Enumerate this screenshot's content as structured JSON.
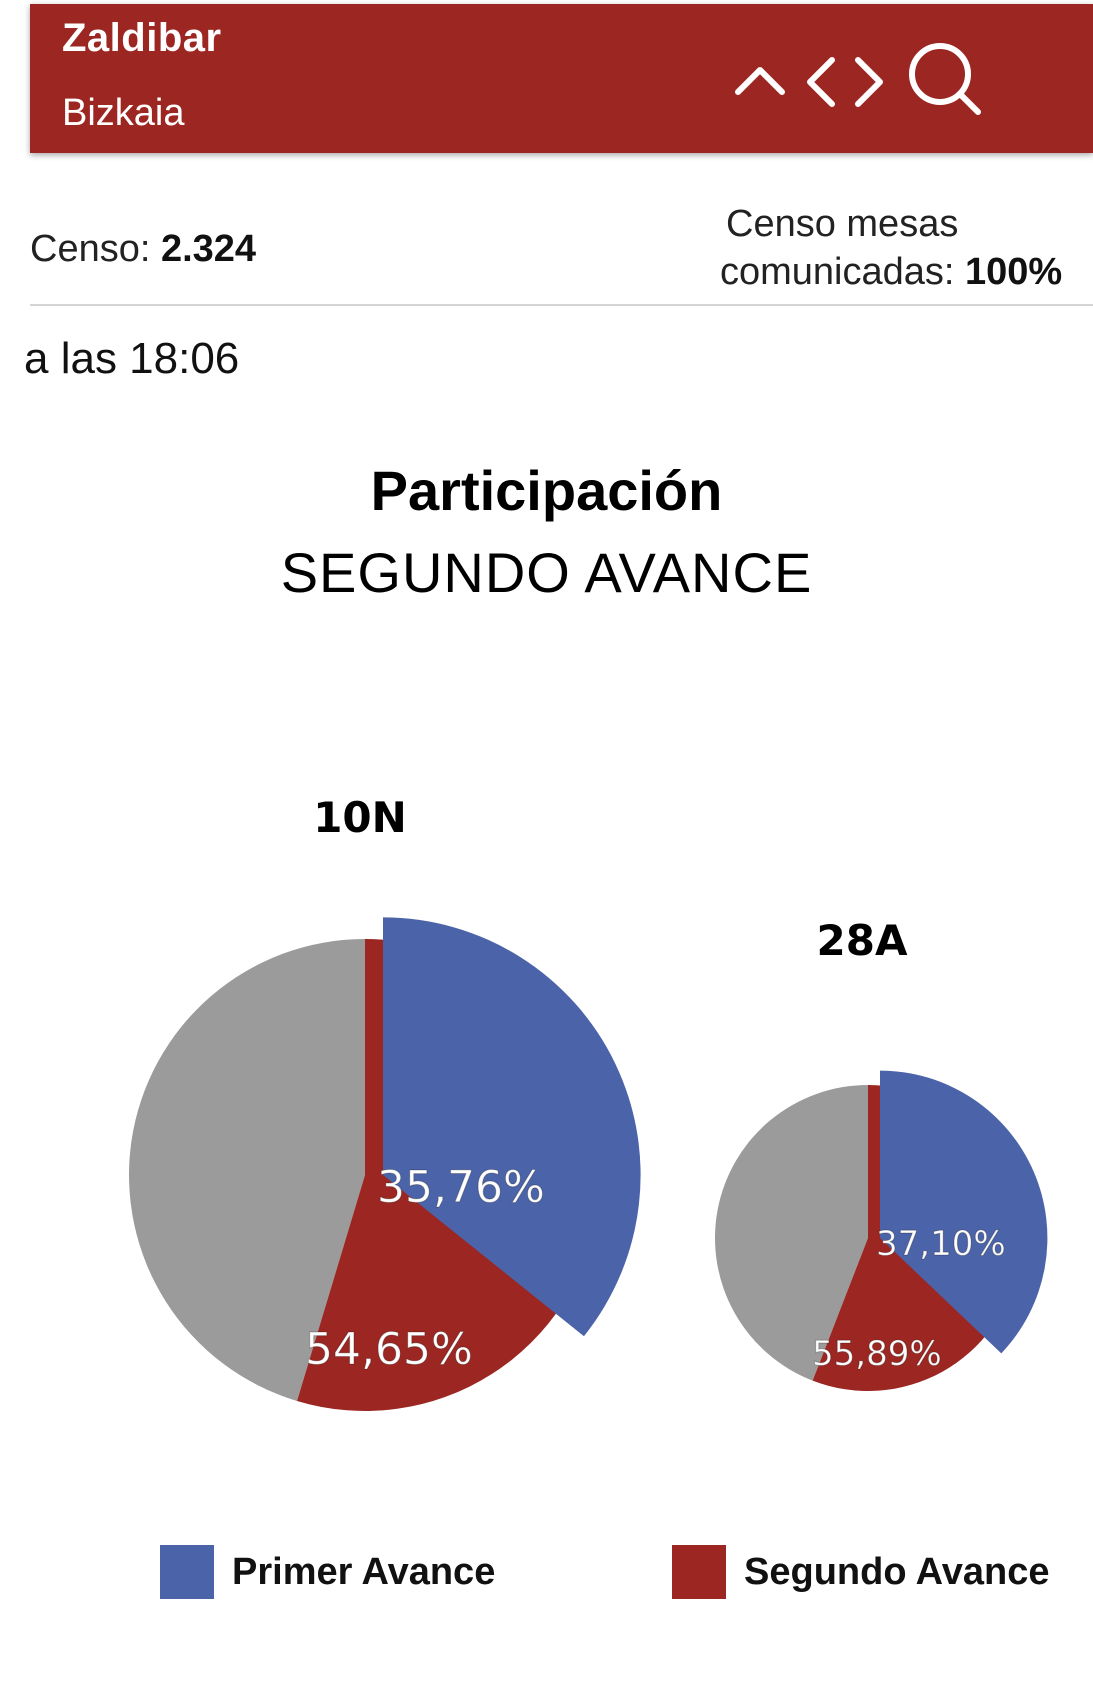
{
  "header": {
    "title": "Zaldibar",
    "subtitle": "Bizkaia",
    "icons": [
      "chevron-up-icon",
      "chevron-left-icon",
      "chevron-right-icon",
      "search-icon"
    ]
  },
  "info": {
    "censo_label": "Censo:",
    "censo_value": "2.324",
    "mesas_label_line1": "Censo mesas",
    "mesas_label_line2": "comunicadas:",
    "mesas_value": "100%"
  },
  "time_text": "a las 18:06",
  "colors": {
    "brand": "#9c2621",
    "primer": "#4b63a8",
    "segundo": "#9c2621",
    "rest": "#9b9b9b"
  },
  "chart_data": {
    "type": "pie",
    "title": "Participación",
    "subtitle": "SEGUNDO AVANCE",
    "series_names": [
      "Primer Avance",
      "Segundo Avance"
    ],
    "legend_position": "bottom",
    "charts": [
      {
        "name": "10N",
        "values": {
          "Primer Avance": 35.76,
          "Segundo Avance": 54.65
        },
        "labels": [
          "35,76%",
          "54,65%"
        ]
      },
      {
        "name": "28A",
        "values": {
          "Primer Avance": 37.1,
          "Segundo Avance": 55.89
        },
        "labels": [
          "37,10%",
          "55,89%"
        ]
      }
    ]
  },
  "legend": [
    {
      "label": "Primer Avance",
      "color": "#4b63a8"
    },
    {
      "label": "Segundo Avance",
      "color": "#9c2621"
    }
  ]
}
